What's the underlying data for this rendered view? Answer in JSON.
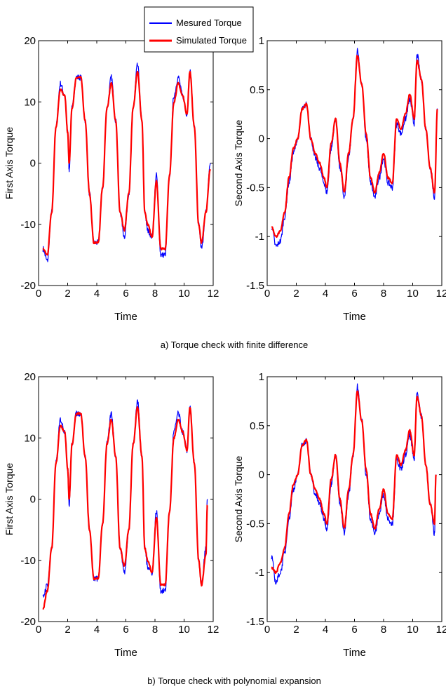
{
  "legend": {
    "entries": [
      {
        "label": "Mesured Torque",
        "color": "#0000ff"
      },
      {
        "label": "Simulated Torque",
        "color": "#ff0000"
      }
    ]
  },
  "captions": {
    "a": "a) Torque check with finite difference",
    "b": "b) Torque check with polynomial expansion"
  },
  "chart_data": [
    {
      "type": "line",
      "panel": "a-left",
      "xlabel": "Time",
      "ylabel": "First Axis Torque",
      "xlim": [
        0,
        12
      ],
      "ylim": [
        -20,
        20
      ],
      "xticks": [
        0,
        2,
        4,
        6,
        8,
        10,
        12
      ],
      "yticks": [
        -20,
        -10,
        0,
        10,
        20
      ],
      "grid": false,
      "series": [
        {
          "name": "Mesured Torque",
          "color": "#0000ff",
          "x": [
            0.3,
            0.6,
            0.9,
            1.2,
            1.5,
            1.8,
            2.0,
            2.1,
            2.3,
            2.6,
            2.9,
            3.2,
            3.5,
            3.8,
            4.1,
            4.4,
            4.7,
            5.0,
            5.3,
            5.6,
            5.9,
            6.2,
            6.5,
            6.8,
            7.1,
            7.3,
            7.5,
            7.8,
            8.1,
            8.4,
            8.7,
            9.0,
            9.3,
            9.6,
            9.9,
            10.2,
            10.4,
            10.7,
            11.0,
            11.2,
            11.5,
            11.8
          ],
          "y": [
            -14,
            -16,
            -8,
            6,
            13,
            11,
            5,
            -1,
            9,
            14,
            14,
            7,
            -5,
            -13,
            -13,
            -4,
            9,
            14,
            7,
            -8,
            -12,
            -5,
            9,
            16,
            7,
            -8,
            -11,
            -12,
            -2,
            -15,
            -15,
            -2,
            11,
            14,
            11,
            8,
            15,
            6,
            -10,
            -14,
            -8,
            0
          ]
        },
        {
          "name": "Simulated Torque",
          "color": "#ff0000",
          "x": [
            0.3,
            0.6,
            0.9,
            1.2,
            1.5,
            1.8,
            2.0,
            2.1,
            2.3,
            2.6,
            2.9,
            3.2,
            3.5,
            3.8,
            4.1,
            4.4,
            4.7,
            5.0,
            5.3,
            5.6,
            5.9,
            6.2,
            6.5,
            6.8,
            7.1,
            7.3,
            7.5,
            7.8,
            8.1,
            8.4,
            8.7,
            9.0,
            9.3,
            9.6,
            9.9,
            10.2,
            10.4,
            10.7,
            11.0,
            11.2,
            11.5,
            11.8
          ],
          "y": [
            -14,
            -15,
            -8,
            6,
            12,
            11,
            5,
            0,
            9,
            14,
            14,
            7,
            -5,
            -13,
            -13,
            -4,
            9,
            13,
            7,
            -8,
            -11,
            -5,
            9,
            15,
            7,
            -8,
            -10,
            -12,
            -3,
            -14,
            -14,
            -2,
            10,
            13,
            11,
            8,
            15,
            6,
            -10,
            -13,
            -8,
            -1
          ]
        }
      ]
    },
    {
      "type": "line",
      "panel": "a-right",
      "xlabel": "Time",
      "ylabel": "Second Axis Torque",
      "xlim": [
        0,
        12
      ],
      "ylim": [
        -1.5,
        1
      ],
      "xticks": [
        0,
        2,
        4,
        6,
        8,
        10,
        12
      ],
      "yticks": [
        -1.5,
        -1,
        -0.5,
        0,
        0.5,
        1
      ],
      "grid": false,
      "series": [
        {
          "name": "Mesured Torque",
          "color": "#0000ff",
          "x": [
            0.3,
            0.6,
            0.9,
            1.2,
            1.5,
            1.8,
            2.1,
            2.4,
            2.7,
            3.0,
            3.3,
            3.6,
            3.9,
            4.1,
            4.4,
            4.7,
            5.0,
            5.3,
            5.6,
            5.9,
            6.2,
            6.5,
            6.8,
            7.1,
            7.4,
            7.7,
            8.0,
            8.3,
            8.6,
            8.9,
            9.2,
            9.5,
            9.8,
            10.1,
            10.3,
            10.6,
            10.9,
            11.2,
            11.5,
            11.7
          ],
          "y": [
            -0.9,
            -1.1,
            -1.05,
            -0.8,
            -0.45,
            -0.15,
            0.0,
            0.3,
            0.35,
            0.0,
            -0.2,
            -0.3,
            -0.45,
            -0.55,
            -0.1,
            0.2,
            -0.3,
            -0.6,
            -0.2,
            0.2,
            0.9,
            0.55,
            0.0,
            -0.45,
            -0.6,
            -0.4,
            -0.2,
            -0.45,
            -0.5,
            0.15,
            0.05,
            0.2,
            0.4,
            0.15,
            0.85,
            0.6,
            0.1,
            -0.3,
            -0.6,
            0.3
          ]
        },
        {
          "name": "Simulated Torque",
          "color": "#ff0000",
          "x": [
            0.3,
            0.6,
            0.9,
            1.2,
            1.5,
            1.8,
            2.1,
            2.4,
            2.7,
            3.0,
            3.3,
            3.6,
            3.9,
            4.1,
            4.4,
            4.7,
            5.0,
            5.3,
            5.6,
            5.9,
            6.2,
            6.5,
            6.8,
            7.1,
            7.4,
            7.7,
            8.0,
            8.3,
            8.6,
            8.9,
            9.2,
            9.5,
            9.8,
            10.1,
            10.3,
            10.6,
            10.9,
            11.2,
            11.5,
            11.7
          ],
          "y": [
            -0.9,
            -1.0,
            -0.95,
            -0.75,
            -0.4,
            -0.1,
            0.0,
            0.3,
            0.35,
            0.0,
            -0.15,
            -0.25,
            -0.4,
            -0.5,
            -0.05,
            0.2,
            -0.25,
            -0.55,
            -0.15,
            0.2,
            0.85,
            0.55,
            0.05,
            -0.4,
            -0.55,
            -0.35,
            -0.15,
            -0.4,
            -0.45,
            0.2,
            0.1,
            0.25,
            0.45,
            0.2,
            0.8,
            0.6,
            0.1,
            -0.3,
            -0.55,
            0.3
          ]
        }
      ]
    },
    {
      "type": "line",
      "panel": "b-left",
      "xlabel": "Time",
      "ylabel": "First Axis Torque",
      "xlim": [
        0,
        12
      ],
      "ylim": [
        -20,
        20
      ],
      "xticks": [
        0,
        2,
        4,
        6,
        8,
        10,
        12
      ],
      "yticks": [
        -20,
        -10,
        0,
        10,
        20
      ],
      "grid": false,
      "series": [
        {
          "name": "Mesured Torque",
          "color": "#0000ff",
          "x": [
            0.3,
            0.6,
            0.9,
            1.2,
            1.5,
            1.8,
            2.0,
            2.1,
            2.3,
            2.6,
            2.9,
            3.2,
            3.5,
            3.8,
            4.1,
            4.4,
            4.7,
            5.0,
            5.3,
            5.6,
            5.9,
            6.2,
            6.5,
            6.8,
            7.1,
            7.3,
            7.5,
            7.8,
            8.1,
            8.4,
            8.7,
            9.0,
            9.3,
            9.6,
            9.9,
            10.2,
            10.4,
            10.7,
            11.0,
            11.2,
            11.5,
            11.6
          ],
          "y": [
            -16,
            -14,
            -8,
            6,
            13,
            11,
            5,
            -1,
            9,
            14,
            14,
            7,
            -5,
            -13,
            -13,
            -4,
            9,
            14,
            7,
            -8,
            -12,
            -5,
            9,
            16,
            7,
            -8,
            -11,
            -12,
            -2,
            -15,
            -15,
            -2,
            11,
            14,
            11,
            8,
            15,
            6,
            -10,
            -14,
            -8,
            0
          ]
        },
        {
          "name": "Simulated Torque",
          "color": "#ff0000",
          "x": [
            0.3,
            0.6,
            0.9,
            1.2,
            1.5,
            1.8,
            2.0,
            2.1,
            2.3,
            2.6,
            2.9,
            3.2,
            3.5,
            3.8,
            4.1,
            4.4,
            4.7,
            5.0,
            5.3,
            5.6,
            5.9,
            6.2,
            6.5,
            6.8,
            7.1,
            7.3,
            7.5,
            7.8,
            8.1,
            8.4,
            8.7,
            9.0,
            9.3,
            9.6,
            9.9,
            10.2,
            10.4,
            10.7,
            11.0,
            11.2,
            11.5,
            11.6
          ],
          "y": [
            -18,
            -15,
            -8,
            6,
            12,
            11,
            5,
            0,
            9,
            14,
            14,
            7,
            -5,
            -13,
            -13,
            -4,
            9,
            13,
            7,
            -8,
            -11,
            -5,
            9,
            15,
            7,
            -8,
            -10,
            -12,
            -3,
            -14,
            -14,
            -2,
            10,
            13,
            11,
            8,
            15,
            6,
            -10,
            -14,
            -9,
            -1
          ]
        }
      ]
    },
    {
      "type": "line",
      "panel": "b-right",
      "xlabel": "Time",
      "ylabel": "Second Axis Torque",
      "xlim": [
        0,
        12
      ],
      "ylim": [
        -1.5,
        1
      ],
      "xticks": [
        0,
        2,
        4,
        6,
        8,
        10,
        12
      ],
      "yticks": [
        -1.5,
        -1,
        -0.5,
        0,
        0.5,
        1
      ],
      "grid": false,
      "series": [
        {
          "name": "Mesured Torque",
          "color": "#0000ff",
          "x": [
            0.3,
            0.6,
            0.9,
            1.2,
            1.5,
            1.8,
            2.1,
            2.4,
            2.7,
            3.0,
            3.3,
            3.6,
            3.9,
            4.1,
            4.4,
            4.7,
            5.0,
            5.3,
            5.6,
            5.9,
            6.2,
            6.5,
            6.8,
            7.1,
            7.4,
            7.7,
            8.0,
            8.3,
            8.6,
            8.9,
            9.2,
            9.5,
            9.8,
            10.1,
            10.3,
            10.6,
            10.9,
            11.2,
            11.5,
            11.6
          ],
          "y": [
            -0.85,
            -1.1,
            -1.0,
            -0.8,
            -0.45,
            -0.15,
            0.0,
            0.3,
            0.35,
            0.0,
            -0.2,
            -0.3,
            -0.45,
            -0.55,
            -0.1,
            0.2,
            -0.3,
            -0.6,
            -0.2,
            0.2,
            0.9,
            0.55,
            0.0,
            -0.45,
            -0.6,
            -0.4,
            -0.2,
            -0.45,
            -0.5,
            0.15,
            0.05,
            0.2,
            0.4,
            0.15,
            0.85,
            0.6,
            0.1,
            -0.3,
            -0.6,
            0.0
          ]
        },
        {
          "name": "Simulated Torque",
          "color": "#ff0000",
          "x": [
            0.3,
            0.6,
            0.9,
            1.2,
            1.5,
            1.8,
            2.1,
            2.4,
            2.7,
            3.0,
            3.3,
            3.6,
            3.9,
            4.1,
            4.4,
            4.7,
            5.0,
            5.3,
            5.6,
            5.9,
            6.2,
            6.5,
            6.8,
            7.1,
            7.4,
            7.7,
            8.0,
            8.3,
            8.6,
            8.9,
            9.2,
            9.5,
            9.8,
            10.1,
            10.3,
            10.6,
            10.9,
            11.2,
            11.5,
            11.6
          ],
          "y": [
            -0.95,
            -1.0,
            -0.9,
            -0.75,
            -0.4,
            -0.1,
            0.0,
            0.3,
            0.35,
            0.0,
            -0.15,
            -0.25,
            -0.4,
            -0.5,
            -0.05,
            0.2,
            -0.25,
            -0.55,
            -0.15,
            0.2,
            0.85,
            0.55,
            0.05,
            -0.4,
            -0.55,
            -0.35,
            -0.15,
            -0.4,
            -0.45,
            0.2,
            0.1,
            0.25,
            0.45,
            0.2,
            0.8,
            0.6,
            0.1,
            -0.3,
            -0.5,
            0.0
          ]
        }
      ]
    }
  ]
}
